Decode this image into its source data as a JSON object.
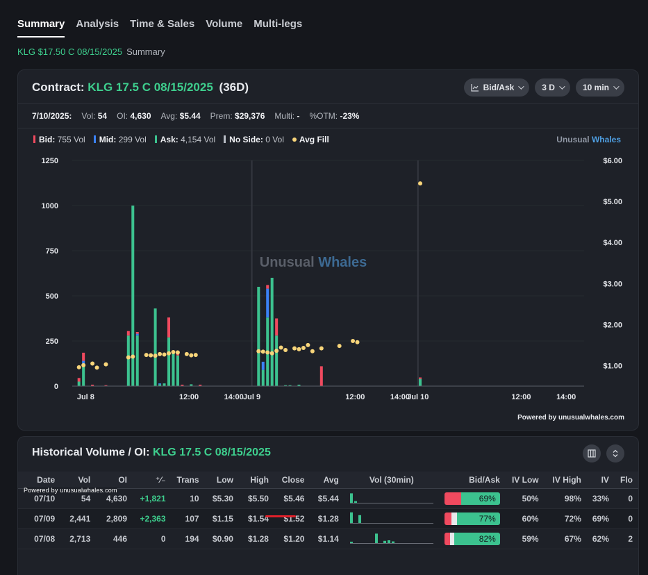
{
  "tabs": [
    "Summary",
    "Analysis",
    "Time & Sales",
    "Volume",
    "Multi-legs"
  ],
  "breadcrumb": {
    "contract": "KLG $17.50 C 08/15/2025",
    "page": "Summary"
  },
  "contract": {
    "label": "Contract:",
    "name": "KLG 17.5 C 08/15/2025",
    "dte": "(36D)"
  },
  "controls": {
    "mode": "Bid/Ask",
    "range": "3 D",
    "interval": "10 min"
  },
  "stats": {
    "date": "7/10/2025:",
    "vol_label": "Vol:",
    "vol": "54",
    "oi_label": "OI:",
    "oi": "4,630",
    "avg_label": "Avg:",
    "avg": "$5.44",
    "prem_label": "Prem:",
    "prem": "$29,376",
    "multi_label": "Multi:",
    "multi": "-",
    "otm_label": "%OTM:",
    "otm": "-23%"
  },
  "legend": {
    "bid_label": "Bid:",
    "bid": "755 Vol",
    "mid_label": "Mid:",
    "mid": "299 Vol",
    "ask_label": "Ask:",
    "ask": "4,154 Vol",
    "noside_label": "No Side:",
    "noside": "0 Vol",
    "avgfill_label": "Avg Fill"
  },
  "brand": {
    "a": "Unusual",
    "b": "Whales"
  },
  "watermark": {
    "a": "Unusual",
    "b": "Whales"
  },
  "powered": "Powered by unusualwhales.com",
  "powered_small": "Powered by unusualwhales.com",
  "colors": {
    "bid": "#f04a5f",
    "mid": "#3b82f6",
    "ask": "#3cc28f",
    "noside": "#b8bcc4",
    "avg": "#f8d57a"
  },
  "chart_data": {
    "type": "bar",
    "y_left_ticks": [
      "0",
      "250",
      "500",
      "750",
      "1000",
      "1250"
    ],
    "y_left_range": [
      0,
      1250
    ],
    "y_right_ticks": [
      "$1.00",
      "$2.00",
      "$3.00",
      "$4.00",
      "$5.00",
      "$6.00"
    ],
    "y_right_range": [
      0.5,
      6
    ],
    "x_ticks": [
      "Jul 8",
      "12:00",
      "14:00",
      "Jul 9",
      "12:00",
      "14:00",
      "Jul 10",
      "12:00",
      "14:00"
    ],
    "x_tick_slots": [
      3,
      26,
      36,
      40,
      63,
      73,
      77,
      100,
      110
    ],
    "session_breaks": [
      40,
      77
    ],
    "slots_total": 114,
    "bars": [
      {
        "slot": 1,
        "ask": 25,
        "mid": 0,
        "bid": 20
      },
      {
        "slot": 2,
        "ask": 120,
        "mid": 20,
        "bid": 45
      },
      {
        "slot": 4,
        "ask": 0,
        "mid": 0,
        "bid": 8
      },
      {
        "slot": 7,
        "ask": 0,
        "mid": 0,
        "bid": 5
      },
      {
        "slot": 12,
        "ask": 280,
        "mid": 0,
        "bid": 25
      },
      {
        "slot": 13,
        "ask": 1000,
        "mid": 0,
        "bid": 0
      },
      {
        "slot": 14,
        "ask": 280,
        "mid": 10,
        "bid": 10
      },
      {
        "slot": 18,
        "ask": 430,
        "mid": 0,
        "bid": 0
      },
      {
        "slot": 19,
        "ask": 10,
        "mid": 5,
        "bid": 0
      },
      {
        "slot": 20,
        "ask": 15,
        "mid": 0,
        "bid": 0
      },
      {
        "slot": 21,
        "ask": 270,
        "mid": 0,
        "bid": 110
      },
      {
        "slot": 22,
        "ask": 180,
        "mid": 0,
        "bid": 15
      },
      {
        "slot": 23,
        "ask": 170,
        "mid": 0,
        "bid": 20
      },
      {
        "slot": 24,
        "ask": 0,
        "mid": 0,
        "bid": 8
      },
      {
        "slot": 26,
        "ask": 10,
        "mid": 0,
        "bid": 0
      },
      {
        "slot": 28,
        "ask": 0,
        "mid": 0,
        "bid": 8
      },
      {
        "slot": 41,
        "ask": 550,
        "mid": 0,
        "bid": 0
      },
      {
        "slot": 42,
        "ask": 90,
        "mid": 45,
        "bid": 0
      },
      {
        "slot": 43,
        "ask": 380,
        "mid": 160,
        "bid": 20
      },
      {
        "slot": 44,
        "ask": 600,
        "mid": 0,
        "bid": 0
      },
      {
        "slot": 45,
        "ask": 280,
        "mid": 0,
        "bid": 95
      },
      {
        "slot": 47,
        "ask": 5,
        "mid": 0,
        "bid": 0
      },
      {
        "slot": 48,
        "ask": 5,
        "mid": 0,
        "bid": 0
      },
      {
        "slot": 50,
        "ask": 8,
        "mid": 0,
        "bid": 0
      },
      {
        "slot": 55,
        "ask": 0,
        "mid": 0,
        "bid": 110
      },
      {
        "slot": 77,
        "ask": 40,
        "mid": 0,
        "bid": 8
      }
    ],
    "avg_fill": [
      {
        "slot": 1,
        "price": 0.96
      },
      {
        "slot": 2,
        "price": 1.01
      },
      {
        "slot": 4,
        "price": 1.05
      },
      {
        "slot": 5,
        "price": 0.95
      },
      {
        "slot": 7,
        "price": 1.03
      },
      {
        "slot": 12,
        "price": 1.2
      },
      {
        "slot": 13,
        "price": 1.22
      },
      {
        "slot": 16,
        "price": 1.26
      },
      {
        "slot": 17,
        "price": 1.25
      },
      {
        "slot": 18,
        "price": 1.24
      },
      {
        "slot": 19,
        "price": 1.28
      },
      {
        "slot": 20,
        "price": 1.27
      },
      {
        "slot": 21,
        "price": 1.3
      },
      {
        "slot": 22,
        "price": 1.33
      },
      {
        "slot": 23,
        "price": 1.32
      },
      {
        "slot": 25,
        "price": 1.28
      },
      {
        "slot": 26,
        "price": 1.25
      },
      {
        "slot": 27,
        "price": 1.26
      },
      {
        "slot": 41,
        "price": 1.35
      },
      {
        "slot": 42,
        "price": 1.34
      },
      {
        "slot": 43,
        "price": 1.32
      },
      {
        "slot": 44,
        "price": 1.3
      },
      {
        "slot": 45,
        "price": 1.36
      },
      {
        "slot": 46,
        "price": 1.44
      },
      {
        "slot": 47,
        "price": 1.38
      },
      {
        "slot": 49,
        "price": 1.42
      },
      {
        "slot": 50,
        "price": 1.4
      },
      {
        "slot": 51,
        "price": 1.43
      },
      {
        "slot": 52,
        "price": 1.5
      },
      {
        "slot": 53,
        "price": 1.35
      },
      {
        "slot": 55,
        "price": 1.42
      },
      {
        "slot": 59,
        "price": 1.48
      },
      {
        "slot": 62,
        "price": 1.6
      },
      {
        "slot": 63,
        "price": 1.57
      },
      {
        "slot": 77,
        "price": 5.44
      }
    ]
  },
  "history": {
    "title": "Historical Volume / OI:",
    "contract": "KLG 17.5 C 08/15/2025",
    "columns": [
      "Date",
      "Vol",
      "OI",
      "⁺⁄₋",
      "Trans",
      "Low",
      "High",
      "Close",
      "Avg",
      "Vol (30min)",
      "Bid/Ask",
      "IV Low",
      "IV High",
      "IV",
      "Flo"
    ],
    "rows": [
      {
        "date": "07/10",
        "vol": "54",
        "oi": "4,630",
        "chg": "+1,821",
        "trans": "10",
        "low": "$5.30",
        "high": "$5.50",
        "close": "$5.46",
        "avg": "$5.44",
        "bid": 0.3,
        "mid": 0.0,
        "pct": "69%",
        "ivlow": "50%",
        "ivhigh": "98%",
        "iv": "33%",
        "flo": "0",
        "spark": [
          0.85,
          0.15,
          0,
          0,
          0,
          0,
          0,
          0,
          0,
          0,
          0,
          0,
          0,
          0,
          0,
          0,
          0,
          0,
          0,
          0
        ]
      },
      {
        "date": "07/09",
        "vol": "2,441",
        "oi": "2,809",
        "chg": "+2,363",
        "trans": "107",
        "low": "$1.15",
        "high": "$1.54",
        "close": "$1.52",
        "avg": "$1.28",
        "bid": 0.13,
        "mid": 0.1,
        "pct": "77%",
        "ivlow": "60%",
        "ivhigh": "72%",
        "iv": "69%",
        "flo": "0",
        "spark": [
          0.95,
          0,
          0.7,
          0,
          0,
          0,
          0,
          0,
          0,
          0,
          0,
          0,
          0,
          0,
          0,
          0,
          0,
          0,
          0,
          0
        ]
      },
      {
        "date": "07/08",
        "vol": "2,713",
        "oi": "446",
        "chg": "0",
        "trans": "194",
        "low": "$0.90",
        "high": "$1.28",
        "close": "$1.20",
        "avg": "$1.14",
        "bid": 0.1,
        "mid": 0.08,
        "pct": "82%",
        "ivlow": "59%",
        "ivhigh": "67%",
        "iv": "62%",
        "flo": "2",
        "spark": [
          0.12,
          0,
          0,
          0,
          0,
          0,
          0.85,
          0,
          0.2,
          0.25,
          0.15,
          0,
          0,
          0,
          0,
          0,
          0,
          0,
          0,
          0
        ]
      }
    ]
  }
}
